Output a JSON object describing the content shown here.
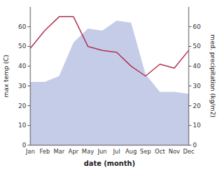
{
  "chart_data": {
    "type": "area",
    "xlabel": "date (month)",
    "ylabel": "max temp (C)",
    "y2label": "med. precipitation (kg/m2)",
    "categories": [
      "Jan",
      "Feb",
      "Mar",
      "Apr",
      "May",
      "Jun",
      "Jul",
      "Aug",
      "Sep",
      "Oct",
      "Nov",
      "Dec"
    ],
    "series": [
      {
        "type": "area",
        "color": "#c5cce8",
        "values": [
          32,
          32,
          35,
          52,
          59,
          58,
          63,
          62,
          36,
          27,
          27,
          26
        ]
      },
      {
        "type": "line",
        "color": "#b03050",
        "axis": "y2",
        "values": [
          49,
          58,
          65,
          65,
          50,
          48,
          47,
          40,
          35,
          41,
          39,
          48
        ]
      }
    ],
    "ylim": [
      0,
      70
    ],
    "yticks": [
      0,
      10,
      20,
      30,
      40,
      50,
      60
    ],
    "y2lim": [
      0,
      70
    ],
    "y2ticks": [
      0,
      10,
      20,
      30,
      40,
      50,
      60
    ],
    "grid": false
  }
}
